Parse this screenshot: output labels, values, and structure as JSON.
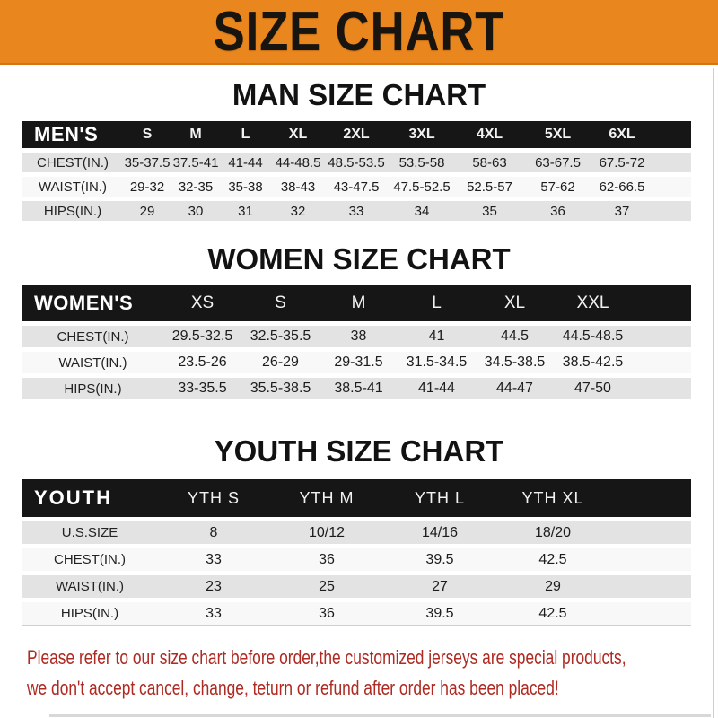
{
  "banner": {
    "title": "SIZE CHART"
  },
  "chart_data": [
    {
      "type": "table",
      "title": "MAN SIZE CHART",
      "corner_label": "MEN'S",
      "columns": [
        "S",
        "M",
        "L",
        "XL",
        "2XL",
        "3XL",
        "4XL",
        "5XL",
        "6XL"
      ],
      "rows": [
        {
          "label": "CHEST(IN.)",
          "values": [
            "35-37.5",
            "37.5-41",
            "41-44",
            "44-48.5",
            "48.5-53.5",
            "53.5-58",
            "58-63",
            "63-67.5",
            "67.5-72"
          ]
        },
        {
          "label": "WAIST(IN.)",
          "values": [
            "29-32",
            "32-35",
            "35-38",
            "38-43",
            "43-47.5",
            "47.5-52.5",
            "52.5-57",
            "57-62",
            "62-66.5"
          ]
        },
        {
          "label": "HIPS(IN.)",
          "values": [
            "29",
            "30",
            "31",
            "32",
            "33",
            "34",
            "35",
            "36",
            "37"
          ]
        }
      ]
    },
    {
      "type": "table",
      "title": "WOMEN SIZE CHART",
      "corner_label": "WOMEN'S",
      "columns": [
        "XS",
        "S",
        "M",
        "L",
        "XL",
        "XXL"
      ],
      "rows": [
        {
          "label": "CHEST(IN.)",
          "values": [
            "29.5-32.5",
            "32.5-35.5",
            "38",
            "41",
            "44.5",
            "44.5-48.5"
          ]
        },
        {
          "label": "WAIST(IN.)",
          "values": [
            "23.5-26",
            "26-29",
            "29-31.5",
            "31.5-34.5",
            "34.5-38.5",
            "38.5-42.5"
          ]
        },
        {
          "label": "HIPS(IN.)",
          "values": [
            "33-35.5",
            "35.5-38.5",
            "38.5-41",
            "41-44",
            "44-47",
            "47-50"
          ]
        }
      ]
    },
    {
      "type": "table",
      "title": "YOUTH SIZE CHART",
      "corner_label": "YOUTH",
      "columns": [
        "YTH S",
        "YTH M",
        "YTH L",
        "YTH XL"
      ],
      "rows": [
        {
          "label": "U.S.SIZE",
          "values": [
            "8",
            "10/12",
            "14/16",
            "18/20"
          ]
        },
        {
          "label": "CHEST(IN.)",
          "values": [
            "33",
            "36",
            "39.5",
            "42.5"
          ]
        },
        {
          "label": "WAIST(IN.)",
          "values": [
            "23",
            "25",
            "27",
            "29"
          ]
        },
        {
          "label": "HIPS(IN.)",
          "values": [
            "33",
            "36",
            "39.5",
            "42.5"
          ]
        }
      ]
    }
  ],
  "footer": {
    "line1": "Please refer to our size chart before order,the customized jerseys are special products,",
    "line2": "we don't accept cancel, change, teturn or refund after order has been placed!"
  },
  "colors": {
    "banner_orange": "#E9861E",
    "header_bar_black": "#161616",
    "row_gray": "#E3E3E3",
    "row_white": "#F8F8F8",
    "footer_red": "#AE2A22"
  }
}
